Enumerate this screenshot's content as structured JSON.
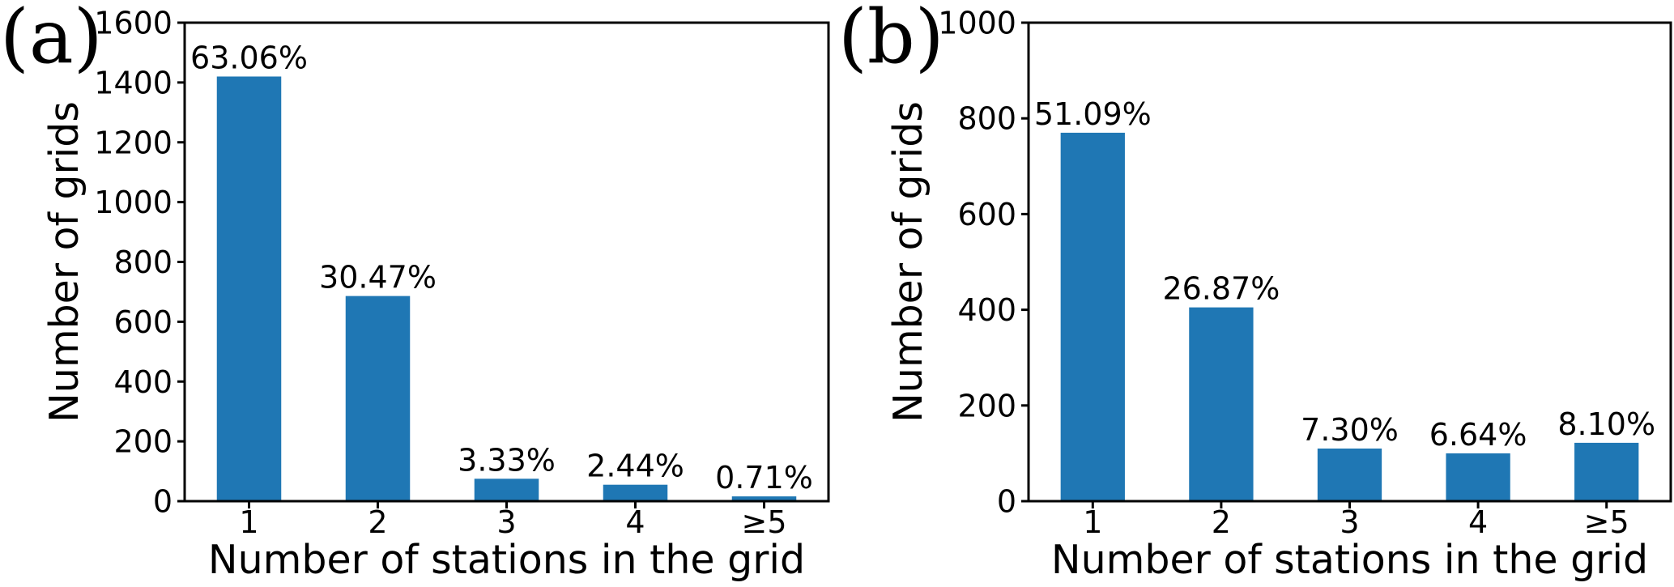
{
  "figure": {
    "background": "#ffffff",
    "bar_color": "#1f77b4",
    "axis_color": "#000000",
    "text_color": "#000000"
  },
  "chart_data": [
    {
      "type": "bar",
      "panel_label": "(a)",
      "xlabel": "Number of stations in the grid",
      "ylabel": "Number of grids",
      "categories": [
        "1",
        "2",
        "3",
        "4",
        "≥5"
      ],
      "values": [
        1420,
        686,
        75,
        55,
        16
      ],
      "bar_labels": [
        "63.06%",
        "30.47%",
        "3.33%",
        "2.44%",
        "0.71%"
      ],
      "ylim": [
        0,
        1600
      ],
      "yticks": [
        0,
        200,
        400,
        600,
        800,
        1000,
        1200,
        1400,
        1600
      ],
      "grid": false,
      "legend": "none"
    },
    {
      "type": "bar",
      "panel_label": "(b)",
      "xlabel": "Number of stations in the grid",
      "ylabel": "Number of grids",
      "categories": [
        "1",
        "2",
        "3",
        "4",
        "≥5"
      ],
      "values": [
        770,
        405,
        110,
        100,
        122
      ],
      "bar_labels": [
        "51.09%",
        "26.87%",
        "7.30%",
        "6.64%",
        "8.10%"
      ],
      "ylim": [
        0,
        1000
      ],
      "yticks": [
        0,
        200,
        400,
        600,
        800,
        1000
      ],
      "grid": false,
      "legend": "none"
    }
  ]
}
